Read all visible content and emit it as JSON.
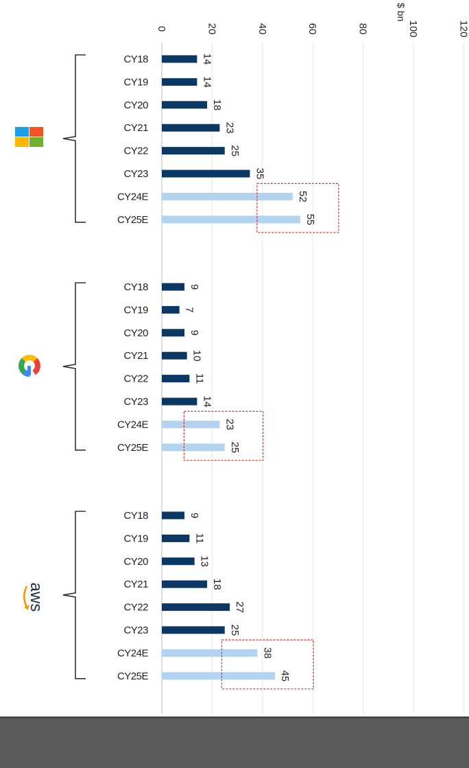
{
  "chart_data": {
    "type": "bar",
    "orientation": "horizontal",
    "unit_label": "$ bn",
    "xlim": [
      0,
      120
    ],
    "x_ticks": [
      "0",
      "20",
      "40",
      "60",
      "80",
      "100",
      "120"
    ],
    "grid": true,
    "categories": [
      "CY18",
      "CY19",
      "CY20",
      "CY21",
      "CY22",
      "CY23",
      "CY24E",
      "CY25E"
    ],
    "groups": [
      {
        "logo": "microsoft-logo",
        "values": [
          14,
          14,
          18,
          23,
          25,
          35,
          52,
          55
        ]
      },
      {
        "logo": "google-logo",
        "values": [
          9,
          7,
          9,
          10,
          11,
          14,
          23,
          25
        ]
      },
      {
        "logo": "aws-logo",
        "values": [
          9,
          11,
          13,
          18,
          27,
          25,
          38,
          45
        ]
      }
    ],
    "estimate_categories": [
      "CY24E",
      "CY25E"
    ],
    "colors": {
      "actual": "#0b3763",
      "estimate": "#b3d4f0",
      "highlight_box": "#d32f2f",
      "grid": "#e6e6e6"
    }
  }
}
